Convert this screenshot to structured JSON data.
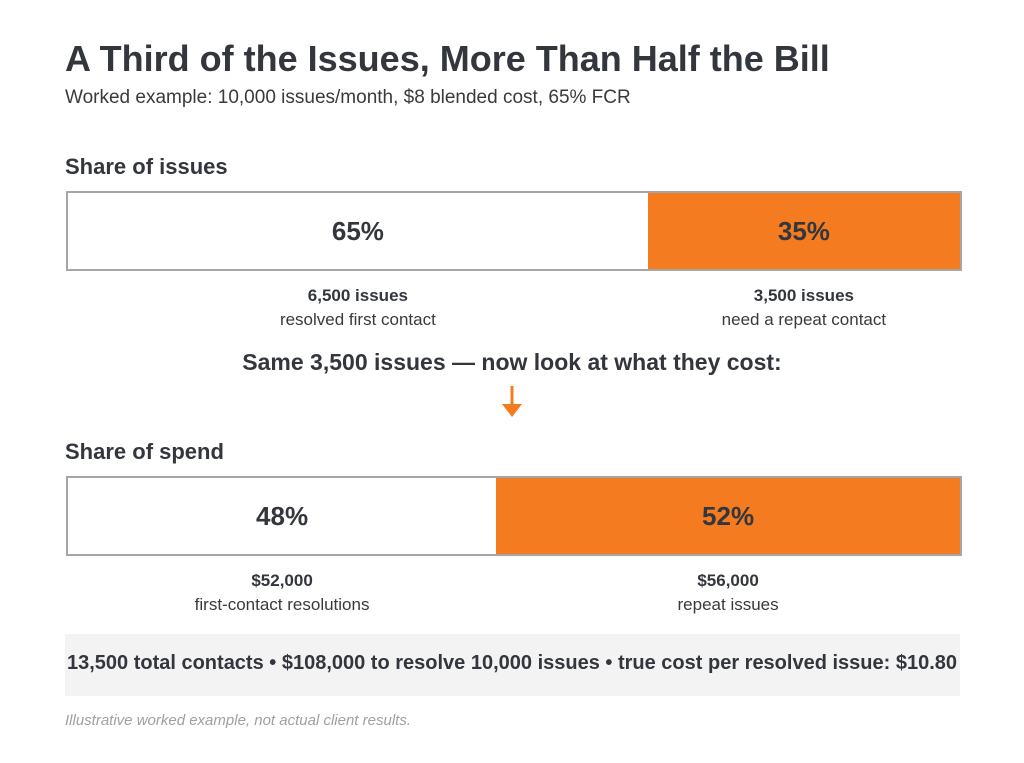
{
  "title": "A Third of the Issues, More Than Half the Bill",
  "subtitle": "Worked example: 10,000 issues/month, $8 blended cost, 65% FCR",
  "colors": {
    "highlight": "#f47b20",
    "neutral": "#ffffff",
    "border": "#a6a6a6",
    "summary_bg": "#f3f3f3"
  },
  "arrow_icon": "down-arrow-icon",
  "transition_text": "Same 3,500 issues — now look at what they cost:",
  "summary": "13,500 total contacts  •  $108,000 to resolve 10,000 issues  •  true cost per resolved issue: $10.80",
  "footnote": "Illustrative worked example, not actual client results.",
  "chart_data": [
    {
      "type": "bar",
      "title": "Share of issues",
      "stacked": true,
      "unit": "percent",
      "series": [
        {
          "label": "65%",
          "value": 65,
          "color": "#ffffff",
          "count": "6,500 issues",
          "description": "resolved first contact"
        },
        {
          "label": "35%",
          "value": 35,
          "color": "#f47b20",
          "count": "3,500 issues",
          "description": "need a repeat contact"
        }
      ]
    },
    {
      "type": "bar",
      "title": "Share of spend",
      "stacked": true,
      "unit": "percent",
      "series": [
        {
          "label": "48%",
          "value": 48,
          "color": "#ffffff",
          "count": "$52,000",
          "description": "first-contact resolutions"
        },
        {
          "label": "52%",
          "value": 52,
          "color": "#f47b20",
          "count": "$56,000",
          "description": "repeat issues"
        }
      ]
    }
  ]
}
